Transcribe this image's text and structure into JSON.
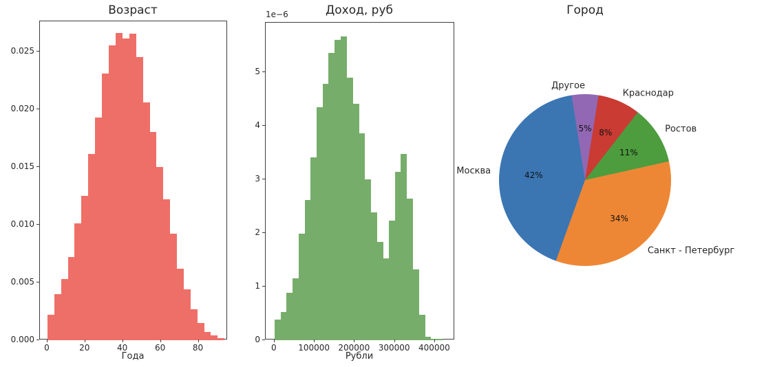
{
  "figure": {
    "background": "#ffffff"
  },
  "chart_data": [
    {
      "type": "histogram",
      "title": "Возраст",
      "xlabel": "Года",
      "color": "#ee6f68",
      "bin_start": 0,
      "bin_width": 3.6,
      "values": [
        0.0022,
        0.004,
        0.0053,
        0.0072,
        0.0101,
        0.0125,
        0.0161,
        0.0193,
        0.0231,
        0.0255,
        0.0266,
        0.0261,
        0.0265,
        0.0245,
        0.0206,
        0.018,
        0.015,
        0.0122,
        0.0092,
        0.0062,
        0.0044,
        0.0027,
        0.0015,
        0.0007,
        0.0004,
        0.0002
      ],
      "xlim": [
        -4,
        95.5
      ],
      "ylim": [
        0,
        0.0276
      ],
      "x_ticks": [
        {
          "v": 0,
          "label": "0"
        },
        {
          "v": 20,
          "label": "20"
        },
        {
          "v": 40,
          "label": "40"
        },
        {
          "v": 60,
          "label": "60"
        },
        {
          "v": 80,
          "label": "80"
        }
      ],
      "y_ticks": [
        {
          "v": 0,
          "label": "0.000"
        },
        {
          "v": 0.005,
          "label": "0.005"
        },
        {
          "v": 0.01,
          "label": "0.010"
        },
        {
          "v": 0.015,
          "label": "0.015"
        },
        {
          "v": 0.02,
          "label": "0.020"
        },
        {
          "v": 0.025,
          "label": "0.025"
        }
      ]
    },
    {
      "type": "histogram",
      "title": "Доход, руб",
      "xlabel": "Рубли",
      "offset_text": "1e−6",
      "value_unit": "1e-6",
      "color": "#77ad6b",
      "bin_start": 0,
      "bin_width": 15000,
      "values": [
        0.38,
        0.52,
        0.89,
        1.15,
        1.98,
        2.62,
        3.41,
        4.35,
        4.78,
        5.36,
        5.6,
        5.66,
        4.9,
        4.41,
        3.86,
        3.0,
        2.38,
        1.83,
        1.53,
        2.23,
        3.14,
        3.47,
        2.64,
        1.32,
        0.47,
        0.06,
        0.02,
        0.02
      ],
      "xlim": [
        -22000,
        450000
      ],
      "ylim": [
        0,
        5.92
      ],
      "x_ticks": [
        {
          "v": 0,
          "label": "0"
        },
        {
          "v": 100000,
          "label": "100000"
        },
        {
          "v": 200000,
          "label": "200000"
        },
        {
          "v": 300000,
          "label": "300000"
        },
        {
          "v": 400000,
          "label": "400000"
        }
      ],
      "y_ticks": [
        {
          "v": 0,
          "label": "0"
        },
        {
          "v": 1,
          "label": "1"
        },
        {
          "v": 2,
          "label": "2"
        },
        {
          "v": 3,
          "label": "3"
        },
        {
          "v": 4,
          "label": "4"
        },
        {
          "v": 5,
          "label": "5"
        }
      ]
    },
    {
      "type": "pie",
      "title": "Город",
      "start_angle_deg": 99,
      "direction": "counterclockwise",
      "label_distance": 1.1,
      "pct_distance": 0.6,
      "slices": [
        {
          "label": "Москва",
          "pct": 42,
          "pct_label": "42%",
          "color": "#3b76b3"
        },
        {
          "label": "Санкт - Петербург",
          "pct": 34,
          "pct_label": "34%",
          "color": "#ee8735"
        },
        {
          "label": "Ростов",
          "pct": 11,
          "pct_label": "11%",
          "color": "#4d9c3e"
        },
        {
          "label": "Краснодар",
          "pct": 8,
          "pct_label": "8%",
          "color": "#c93b33"
        },
        {
          "label": "Другое",
          "pct": 5,
          "pct_label": "5%",
          "color": "#9268b4"
        }
      ]
    }
  ]
}
